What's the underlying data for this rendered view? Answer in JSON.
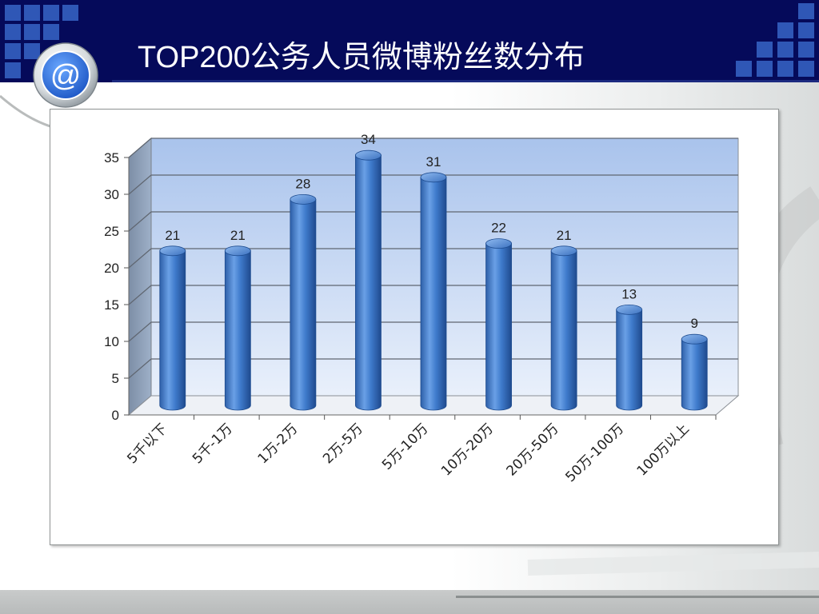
{
  "slide": {
    "title": "TOP200公务人员微博粉丝数分布",
    "logo_icon": "at-sign-icon",
    "logo_symbol": "@"
  },
  "colors": {
    "header": "#050a5a",
    "accent_squares": "#2f57b6",
    "bar": "#3d78c8",
    "plot_back": "#c6d8f2"
  },
  "chart_data": {
    "type": "bar",
    "style": "3d-cylinder",
    "categories": [
      "5千以下",
      "5千-1万",
      "1万-2万",
      "2万-5万",
      "5万-10万",
      "10万-20万",
      "20万-50万",
      "50万-100万",
      "100万以上"
    ],
    "values": [
      21,
      21,
      28,
      34,
      31,
      22,
      21,
      13,
      9
    ],
    "value_labels": [
      "21",
      "21",
      "28",
      "34",
      "31",
      "22",
      "21",
      "13",
      "9"
    ],
    "ylim": [
      0,
      35
    ],
    "yticks": [
      0,
      5,
      10,
      15,
      20,
      25,
      30,
      35
    ],
    "ytick_labels": [
      "0",
      "5",
      "10",
      "15",
      "20",
      "25",
      "30",
      "35"
    ],
    "title": "",
    "xlabel": "",
    "ylabel": "",
    "grid": true,
    "legend": "none"
  }
}
